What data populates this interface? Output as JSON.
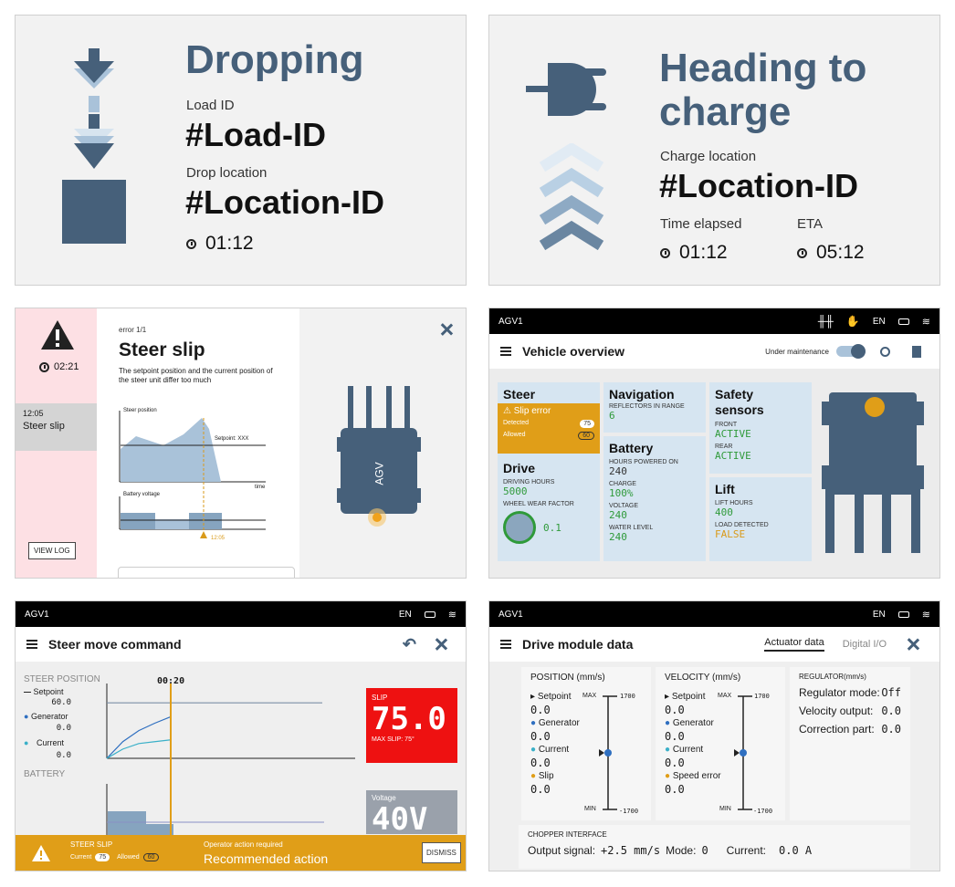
{
  "dropping": {
    "title": "Dropping",
    "load_label": "Load ID",
    "load_value": "#Load-ID",
    "drop_label": "Drop location",
    "drop_value": "#Location-ID",
    "time": "01:12"
  },
  "charge": {
    "title_line1": "Heading to",
    "title_line2": "charge",
    "loc_label": "Charge location",
    "loc_value": "#Location-ID",
    "elapsed_label": "Time elapsed",
    "elapsed": "01:12",
    "eta_label": "ETA",
    "eta": "05:12"
  },
  "error": {
    "time": "02:21",
    "list_time": "12:05",
    "list_label": "Steer slip",
    "view_log": "VIEW LOG",
    "counter": "error 1/1",
    "title": "Steer slip",
    "desc": "The setpoint position and the current position of the steer unit differ too much",
    "chart1_label": "Steer position",
    "setpoint_label": "Setpoint: XXX",
    "time_label": "time",
    "chart2_label": "Battery voltage",
    "marker_time": "12:05",
    "agv_label": "AGV"
  },
  "overview": {
    "agv": "AGV1",
    "lang": "EN",
    "title": "Vehicle overview",
    "maint": "Under maintenance",
    "steer": {
      "title": "Steer",
      "alert": "Slip error",
      "detected": "Detected",
      "detected_v": "75",
      "allowed": "Allowed",
      "allowed_v": "60"
    },
    "drive": {
      "title": "Drive",
      "hours_l": "DRIVING HOURS",
      "hours": "5000",
      "wear_l": "WHEEL WEAR FACTOR",
      "wear": "0.1"
    },
    "nav": {
      "title": "Navigation",
      "refl_l": "REFLECTORS IN RANGE",
      "refl": "6"
    },
    "battery": {
      "title": "Battery",
      "hp_l": "HOURS POWERED ON",
      "hp": "240",
      "charge_l": "CHARGE",
      "charge": "100%",
      "volt_l": "VOLTAGE",
      "volt": "240",
      "water_l": "WATER LEVEL",
      "water": "240"
    },
    "safety": {
      "title1": "Safety",
      "title2": "sensors",
      "front_l": "FRONT",
      "front": "ACTIVE",
      "rear_l": "REAR",
      "rear": "ACTIVE"
    },
    "lift": {
      "title": "Lift",
      "hours_l": "LIFT HOURS",
      "hours": "400",
      "load_l": "LOAD DETECTED",
      "load": "FALSE"
    }
  },
  "steercmd": {
    "agv": "AGV1",
    "lang": "EN",
    "title": "Steer move command",
    "pos_l": "STEER POSITION",
    "setpoint_l": "Setpoint",
    "setpoint": "60.0",
    "gen_l": "Generator",
    "gen": "0.0",
    "cur_l": "Current",
    "cur": "0.0",
    "battery_l": "BATTERY",
    "time": "00:20",
    "slip_l": "SLIP",
    "slip": "75.0",
    "maxslip": "MAX SLIP: 75°",
    "voltage_l": "Voltage",
    "voltage": "40V",
    "alert_title": "STEER SLIP",
    "alert_cur": "Current",
    "alert_cur_v": "75",
    "alert_allowed": "Allowed",
    "alert_allowed_v": "60",
    "op_req": "Operator action required",
    "rec": "Recommended action",
    "dismiss": "DISMISS",
    "chart_data": {
      "type": "line",
      "x": [
        0,
        5,
        10,
        15,
        20
      ],
      "series": [
        {
          "name": "Setpoint",
          "values": [
            60,
            60,
            60,
            60,
            60
          ]
        },
        {
          "name": "Generator",
          "values": [
            0,
            18,
            30,
            38,
            45
          ]
        },
        {
          "name": "Current",
          "values": [
            0,
            10,
            16,
            18,
            20
          ]
        }
      ],
      "ylim": [
        0,
        75
      ]
    }
  },
  "drivemod": {
    "agv": "AGV1",
    "lang": "EN",
    "title": "Drive module data",
    "tab1": "Actuator data",
    "tab2": "Digital I/O",
    "pos": {
      "title": "POSITION (mm/s)",
      "setpoint_l": "Setpoint",
      "setpoint": "0.0",
      "gen_l": "Generator",
      "gen": "0.0",
      "cur_l": "Current",
      "cur": "0.0",
      "slip_l": "Slip",
      "slip": "0.0",
      "max_l": "MAX",
      "max": "1700",
      "min_l": "MIN",
      "min": "-1700"
    },
    "vel": {
      "title": "VELOCITY (mm/s)",
      "setpoint_l": "Setpoint",
      "setpoint": "0.0",
      "gen_l": "Generator",
      "gen": "0.0",
      "cur_l": "Current",
      "cur": "0.0",
      "err_l": "Speed error",
      "err": "0.0",
      "max_l": "MAX",
      "max": "1700",
      "min_l": "MIN",
      "min": "-1700"
    },
    "reg": {
      "title": "REGULATOR(mm/s)",
      "mode_l": "Regulator mode:",
      "mode": "Off",
      "vo_l": "Velocity output:",
      "vo": "0.0",
      "cp_l": "Correction part:",
      "cp": "0.0"
    },
    "chop": {
      "title": "CHOPPER INTERFACE",
      "out_l": "Output signal:",
      "out": "+2.5 mm/s",
      "mode_l": "Mode:",
      "mode": "0",
      "cur_l": "Current:",
      "cur": "0.0 A"
    }
  }
}
